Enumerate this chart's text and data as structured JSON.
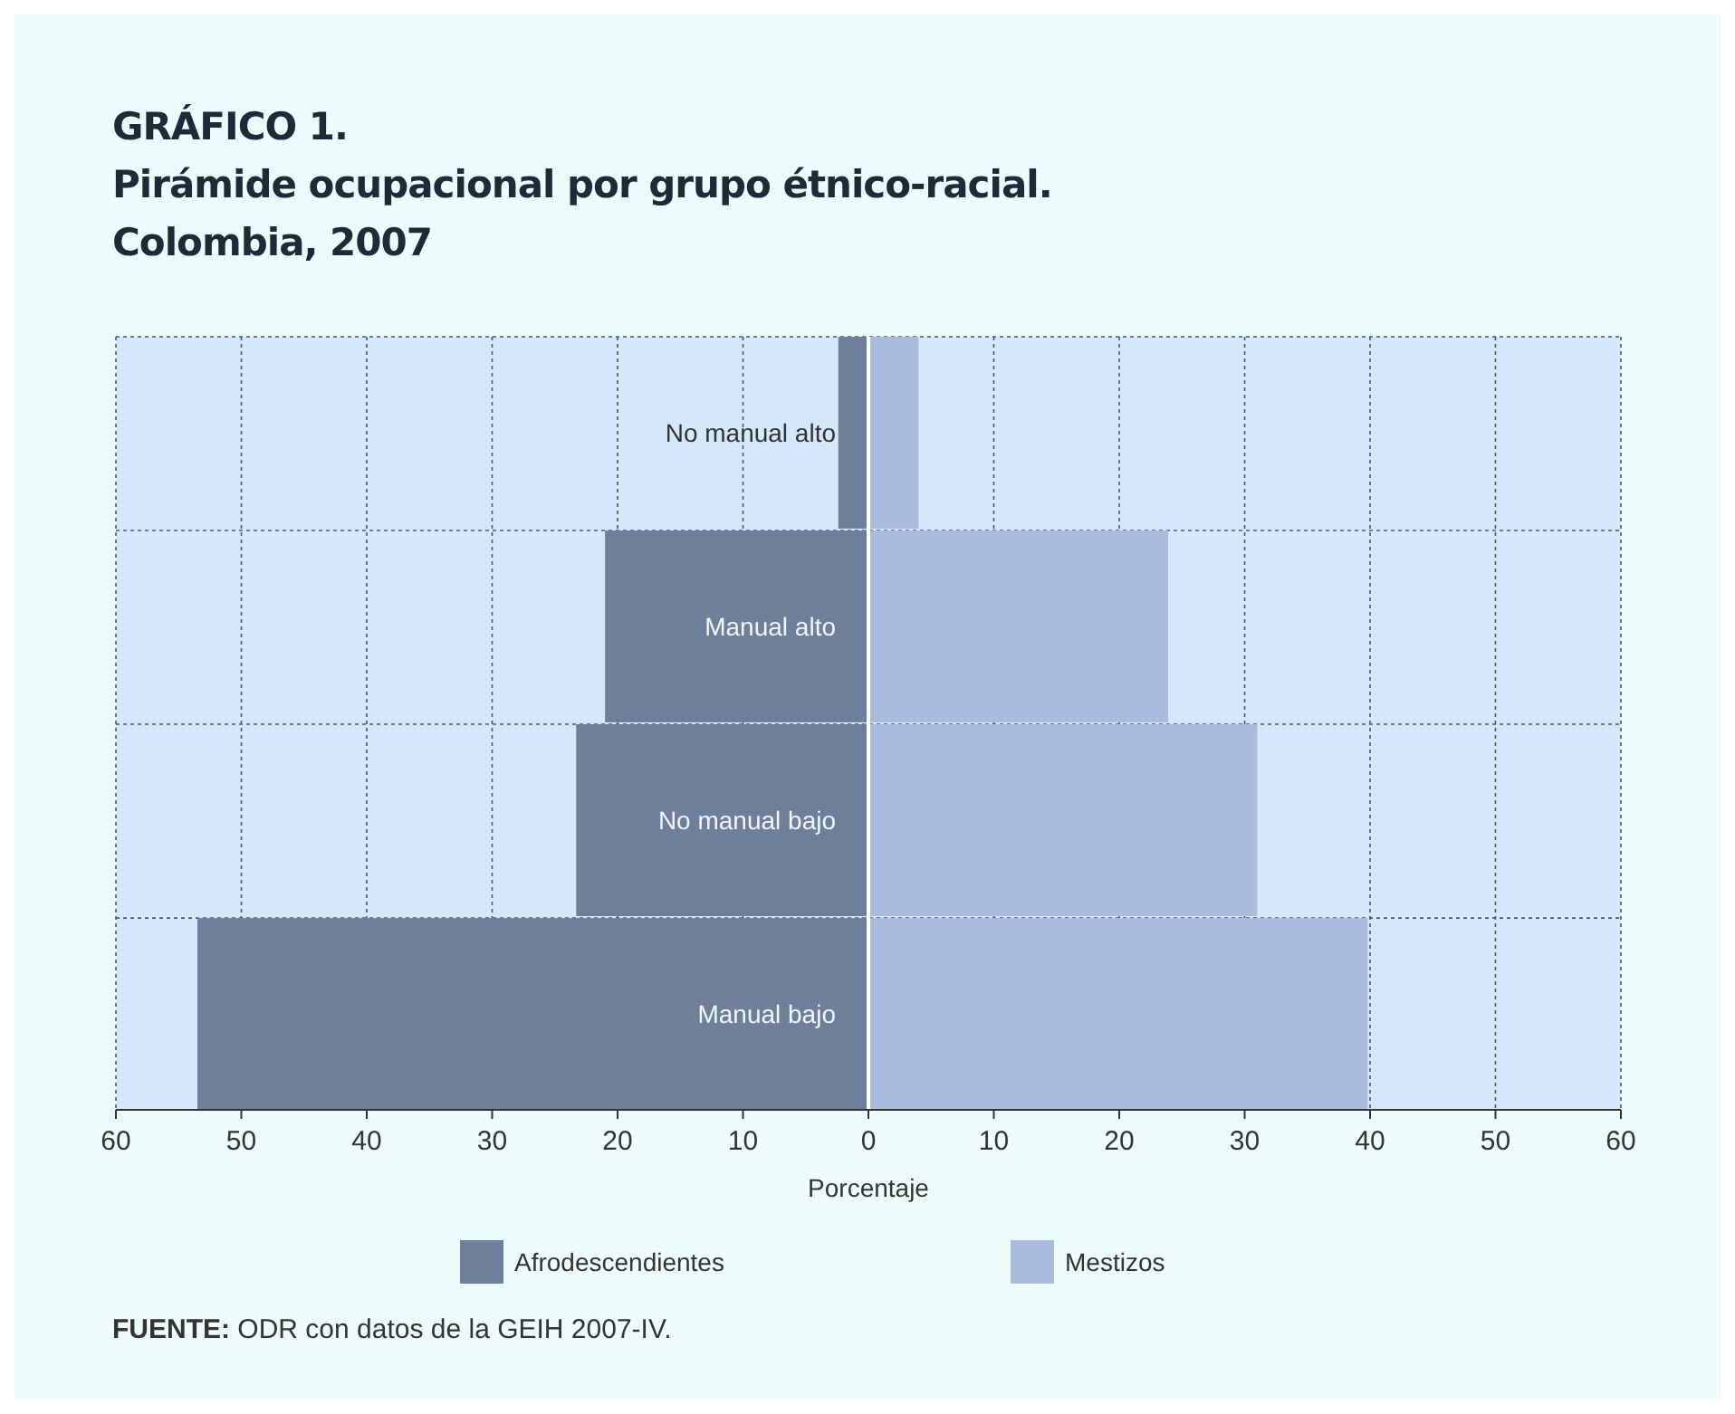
{
  "chart_data": {
    "type": "bar",
    "orientation": "horizontal",
    "title": "GRÁFICO 1.",
    "subtitle": "Pirámide ocupacional por grupo étnico-racial. Colombia, 2007",
    "xlabel": "Porcentaje",
    "categories": [
      "No manual alto",
      "Manual alto",
      "No manual bajo",
      "Manual bajo"
    ],
    "series": [
      {
        "name": "Afrodescendientes",
        "color": "#6e7f9b",
        "values": [
          -2.4,
          -21,
          -23.3,
          -53.5
        ]
      },
      {
        "name": "Mestizos",
        "color": "#a9bcdd",
        "values": [
          4,
          23.9,
          31,
          39.8
        ]
      }
    ],
    "xlim": [
      -60,
      60
    ],
    "xticks": [
      {
        "value": -60,
        "label": "60"
      },
      {
        "value": -50,
        "label": "50"
      },
      {
        "value": -40,
        "label": "40"
      },
      {
        "value": -30,
        "label": "30"
      },
      {
        "value": -20,
        "label": "20"
      },
      {
        "value": -10,
        "label": "10"
      },
      0,
      10,
      20,
      30,
      40,
      50,
      60
    ],
    "stacked": true,
    "grid": true,
    "legend": "bottom",
    "annotations": [
      "FUENTE: ODR con datos de la GEIH 2007-IV."
    ]
  }
}
